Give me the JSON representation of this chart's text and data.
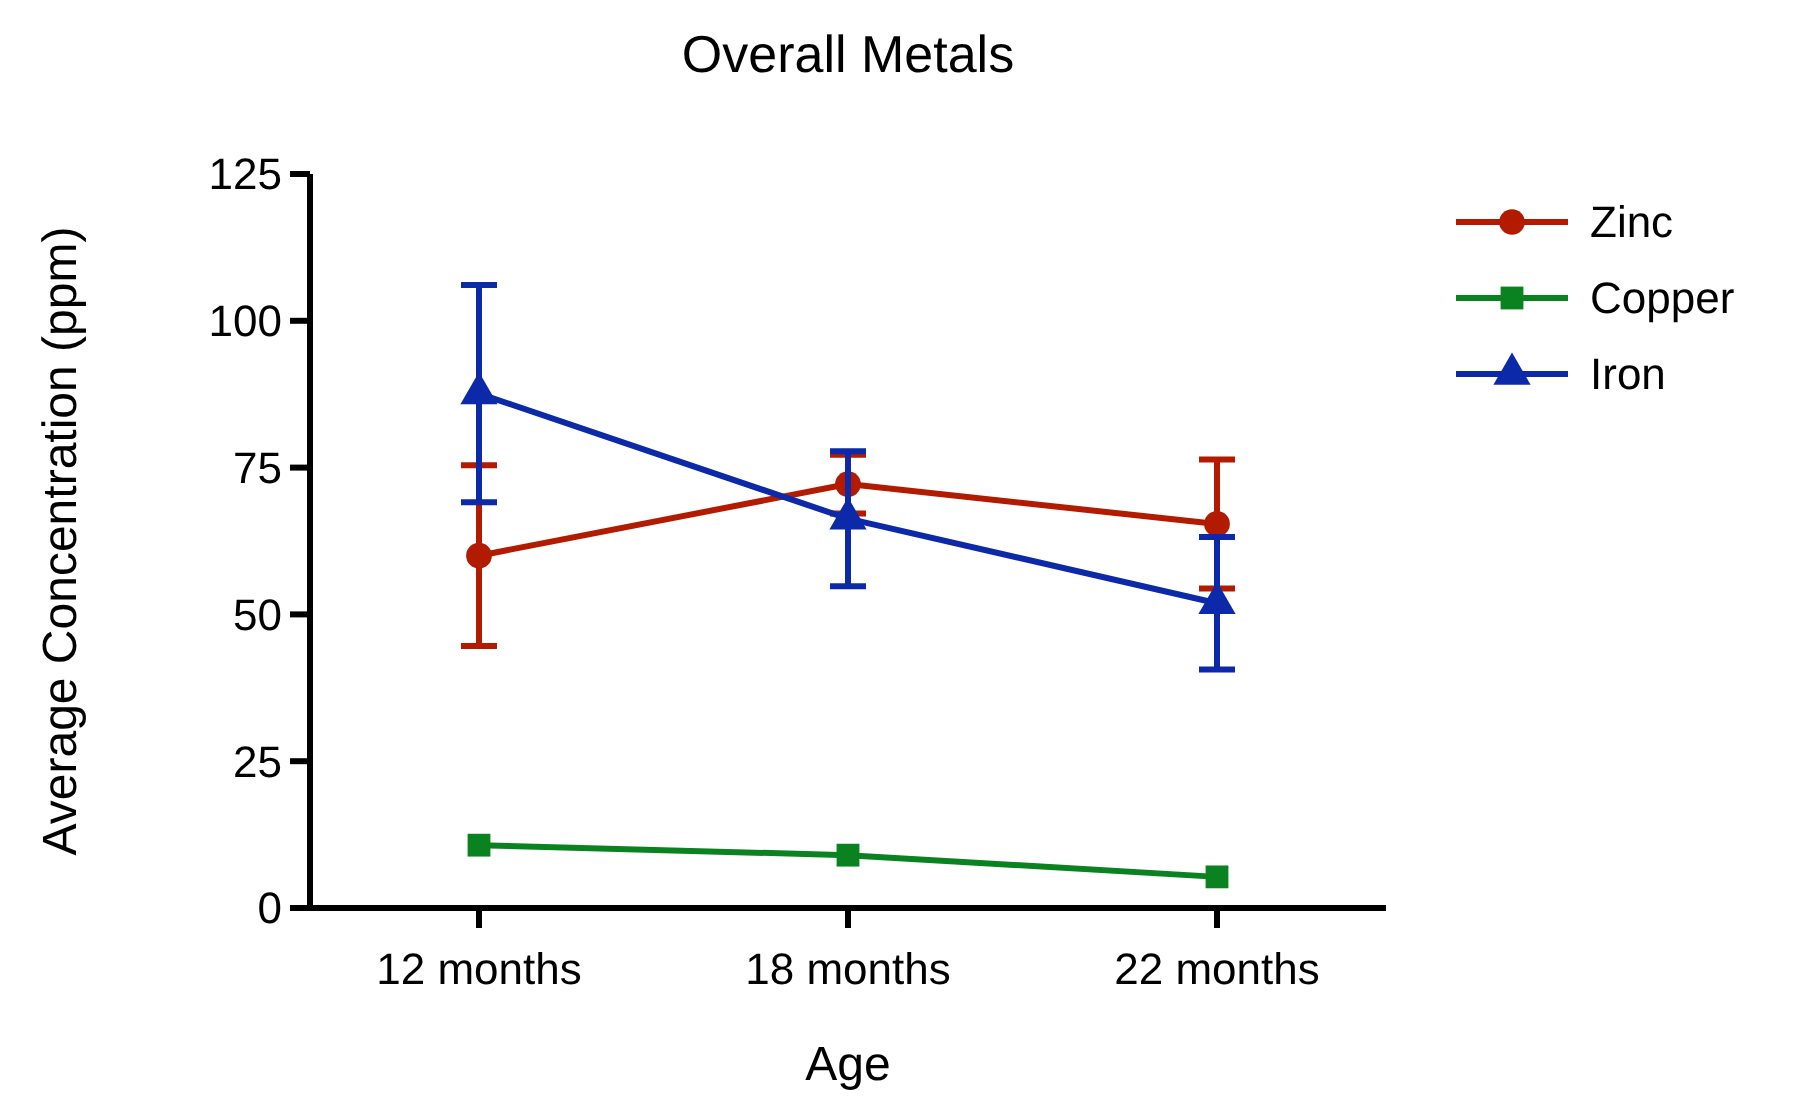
{
  "chart_data": {
    "type": "line",
    "title": "Overall Metals",
    "xlabel": "Age",
    "ylabel": "Average Concentration (ppm)",
    "categories": [
      "12 months",
      "18 months",
      "22 months"
    ],
    "ylim": [
      0,
      125
    ],
    "yticks": [
      0,
      25,
      50,
      75,
      100,
      125
    ],
    "grid": false,
    "legend": "top right",
    "series": [
      {
        "name": "Zinc",
        "color": "#b31b00",
        "marker": "circle",
        "values": [
          60,
          72.2,
          65.4
        ],
        "errors": [
          15.4,
          5,
          11
        ]
      },
      {
        "name": "Copper",
        "color": "#0a8220",
        "marker": "square",
        "values": [
          10.7,
          9,
          5.3
        ]
      },
      {
        "name": "Iron",
        "color": "#0b29a8",
        "marker": "triangle",
        "values": [
          87.6,
          66.3,
          51.9
        ],
        "errors": [
          18.5,
          11.5,
          11.3
        ]
      }
    ]
  }
}
